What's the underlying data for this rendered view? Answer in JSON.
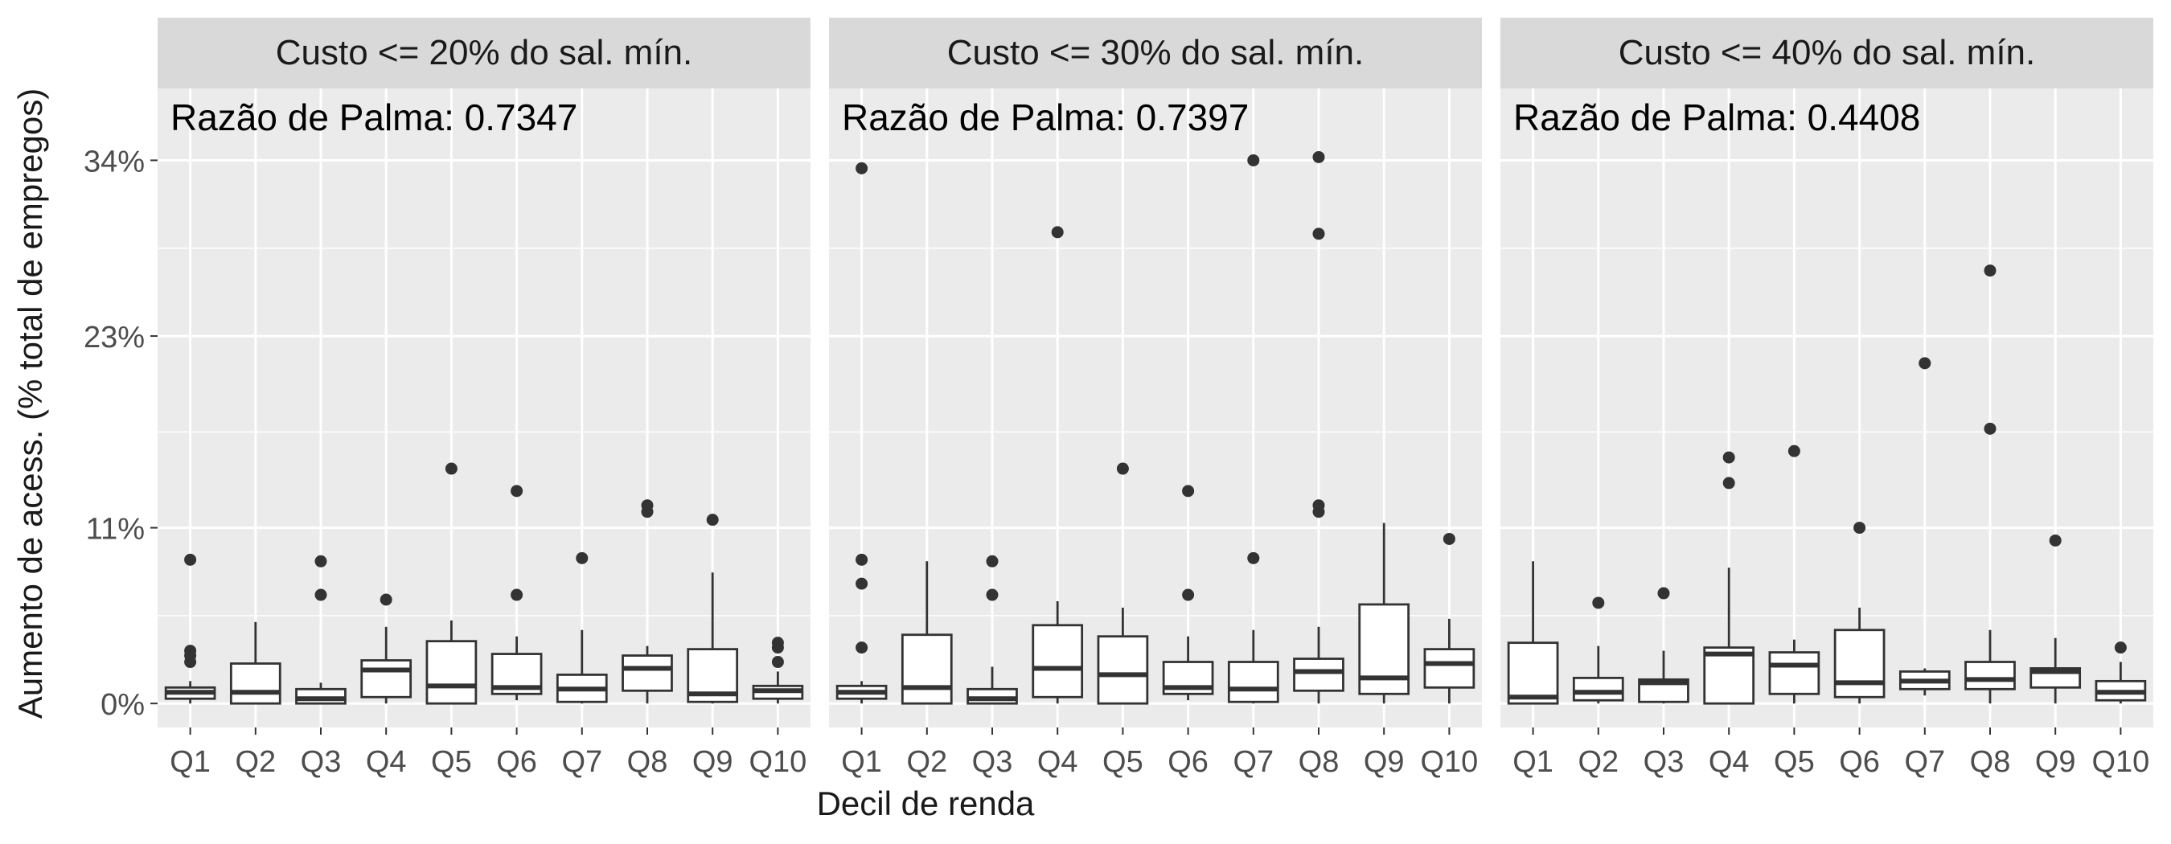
{
  "figure": {
    "ylabel": "Aumento de acess. (% total de empregos)",
    "xlabel": "Decil de renda",
    "y_ticks": [
      "0%",
      "11%",
      "23%",
      "34%"
    ],
    "y_tick_values": [
      0,
      11,
      23,
      34
    ],
    "ylim": [
      -1.5,
      38.5
    ],
    "categories": [
      "Q1",
      "Q2",
      "Q3",
      "Q4",
      "Q5",
      "Q6",
      "Q7",
      "Q8",
      "Q9",
      "Q10"
    ]
  },
  "chart_data": [
    {
      "type": "boxplot",
      "panel_title": "Custo <= 20% do sal. mín.",
      "annotation": "Razão de Palma: 0.7347",
      "categories": [
        "Q1",
        "Q2",
        "Q3",
        "Q4",
        "Q5",
        "Q6",
        "Q7",
        "Q8",
        "Q9",
        "Q10"
      ],
      "boxes": [
        {
          "q1": 0.3,
          "median": 0.7,
          "q3": 1.0,
          "whisker_low": 0.0,
          "whisker_high": 1.4,
          "outliers": [
            2.6,
            3.0,
            3.3,
            9.0
          ]
        },
        {
          "q1": 0.0,
          "median": 0.7,
          "q3": 2.5,
          "whisker_low": 0.0,
          "whisker_high": 5.1,
          "outliers": []
        },
        {
          "q1": 0.0,
          "median": 0.3,
          "q3": 0.9,
          "whisker_low": 0.0,
          "whisker_high": 1.3,
          "outliers": [
            6.8,
            8.9
          ]
        },
        {
          "q1": 0.4,
          "median": 2.1,
          "q3": 2.7,
          "whisker_low": 0.0,
          "whisker_high": 4.8,
          "outliers": [
            6.5
          ]
        },
        {
          "q1": 0.0,
          "median": 1.1,
          "q3": 3.9,
          "whisker_low": 0.0,
          "whisker_high": 5.2,
          "outliers": [
            14.7
          ]
        },
        {
          "q1": 0.6,
          "median": 1.0,
          "q3": 3.1,
          "whisker_low": 0.2,
          "whisker_high": 4.2,
          "outliers": [
            6.8,
            13.3
          ]
        },
        {
          "q1": 0.1,
          "median": 0.9,
          "q3": 1.8,
          "whisker_low": 0.0,
          "whisker_high": 4.6,
          "outliers": [
            9.1
          ]
        },
        {
          "q1": 0.8,
          "median": 2.2,
          "q3": 3.0,
          "whisker_low": 0.0,
          "whisker_high": 3.6,
          "outliers": [
            12.0,
            12.4
          ]
        },
        {
          "q1": 0.1,
          "median": 0.6,
          "q3": 3.4,
          "whisker_low": 0.0,
          "whisker_high": 8.2,
          "outliers": [
            11.5
          ]
        },
        {
          "q1": 0.3,
          "median": 0.8,
          "q3": 1.1,
          "whisker_low": 0.0,
          "whisker_high": 2.0,
          "outliers": [
            2.6,
            3.5,
            3.8
          ]
        }
      ]
    },
    {
      "type": "boxplot",
      "panel_title": "Custo <= 30% do sal. mín.",
      "annotation": "Razão de Palma: 0.7397",
      "categories": [
        "Q1",
        "Q2",
        "Q3",
        "Q4",
        "Q5",
        "Q6",
        "Q7",
        "Q8",
        "Q9",
        "Q10"
      ],
      "boxes": [
        {
          "q1": 0.3,
          "median": 0.7,
          "q3": 1.1,
          "whisker_low": 0.0,
          "whisker_high": 1.4,
          "outliers": [
            3.5,
            7.5,
            9.0,
            33.5
          ]
        },
        {
          "q1": 0.0,
          "median": 1.0,
          "q3": 4.3,
          "whisker_low": 0.0,
          "whisker_high": 8.9,
          "outliers": []
        },
        {
          "q1": 0.0,
          "median": 0.3,
          "q3": 0.9,
          "whisker_low": 0.0,
          "whisker_high": 2.3,
          "outliers": [
            6.8,
            8.9
          ]
        },
        {
          "q1": 0.4,
          "median": 2.2,
          "q3": 4.9,
          "whisker_low": 0.0,
          "whisker_high": 6.4,
          "outliers": [
            29.5
          ]
        },
        {
          "q1": 0.0,
          "median": 1.8,
          "q3": 4.2,
          "whisker_low": 0.0,
          "whisker_high": 6.0,
          "outliers": [
            14.7
          ]
        },
        {
          "q1": 0.6,
          "median": 1.0,
          "q3": 2.6,
          "whisker_low": 0.2,
          "whisker_high": 4.2,
          "outliers": [
            6.8,
            13.3
          ]
        },
        {
          "q1": 0.1,
          "median": 0.9,
          "q3": 2.6,
          "whisker_low": 0.0,
          "whisker_high": 4.6,
          "outliers": [
            9.1,
            34.0
          ]
        },
        {
          "q1": 0.8,
          "median": 2.0,
          "q3": 2.8,
          "whisker_low": 0.0,
          "whisker_high": 4.8,
          "outliers": [
            12.0,
            12.4,
            29.4,
            34.2
          ]
        },
        {
          "q1": 0.6,
          "median": 1.6,
          "q3": 6.2,
          "whisker_low": 0.0,
          "whisker_high": 11.3,
          "outliers": []
        },
        {
          "q1": 1.0,
          "median": 2.5,
          "q3": 3.4,
          "whisker_low": 0.0,
          "whisker_high": 5.3,
          "outliers": [
            10.3
          ]
        }
      ]
    },
    {
      "type": "boxplot",
      "panel_title": "Custo <= 40% do sal. mín.",
      "annotation": "Razão de Palma: 0.4408",
      "categories": [
        "Q1",
        "Q2",
        "Q3",
        "Q4",
        "Q5",
        "Q6",
        "Q7",
        "Q8",
        "Q9",
        "Q10"
      ],
      "boxes": [
        {
          "q1": 0.0,
          "median": 0.4,
          "q3": 3.8,
          "whisker_low": 0.0,
          "whisker_high": 8.9,
          "outliers": []
        },
        {
          "q1": 0.2,
          "median": 0.7,
          "q3": 1.6,
          "whisker_low": 0.0,
          "whisker_high": 3.6,
          "outliers": [
            6.3
          ]
        },
        {
          "q1": 0.1,
          "median": 1.3,
          "q3": 1.5,
          "whisker_low": 0.0,
          "whisker_high": 3.3,
          "outliers": [
            6.9
          ]
        },
        {
          "q1": 0.0,
          "median": 3.1,
          "q3": 3.5,
          "whisker_low": 0.0,
          "whisker_high": 8.5,
          "outliers": [
            13.8,
            15.4
          ]
        },
        {
          "q1": 0.6,
          "median": 2.4,
          "q3": 3.2,
          "whisker_low": 0.0,
          "whisker_high": 4.0,
          "outliers": [
            15.8
          ]
        },
        {
          "q1": 0.4,
          "median": 1.3,
          "q3": 4.6,
          "whisker_low": 0.0,
          "whisker_high": 6.0,
          "outliers": [
            11.0
          ]
        },
        {
          "q1": 0.9,
          "median": 1.4,
          "q3": 2.0,
          "whisker_low": 0.5,
          "whisker_high": 2.2,
          "outliers": [
            21.3
          ]
        },
        {
          "q1": 0.9,
          "median": 1.5,
          "q3": 2.6,
          "whisker_low": 0.0,
          "whisker_high": 4.6,
          "outliers": [
            17.2,
            27.1
          ]
        },
        {
          "q1": 1.0,
          "median": 2.0,
          "q3": 2.2,
          "whisker_low": 0.0,
          "whisker_high": 4.1,
          "outliers": [
            10.2
          ]
        },
        {
          "q1": 0.2,
          "median": 0.7,
          "q3": 1.4,
          "whisker_low": 0.0,
          "whisker_high": 2.6,
          "outliers": [
            3.5
          ]
        }
      ]
    }
  ],
  "colors": {
    "panel_bg": "#ebebeb",
    "strip_bg": "#d9d9d9",
    "grid": "#ffffff",
    "box_line": "#333333",
    "box_fill": "#ffffff",
    "text": "#1a1a1a",
    "tick_text": "#4d4d4d"
  }
}
